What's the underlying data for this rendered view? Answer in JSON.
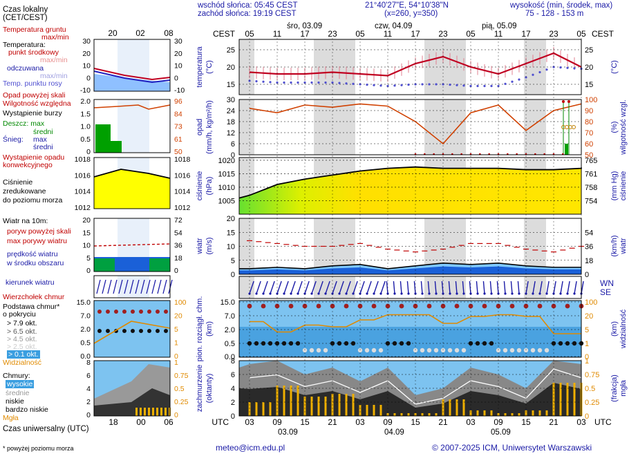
{
  "header": {
    "sunrise": "wschód słońca: 05:45 CEST",
    "sunset": "zachód słońca: 19:19 CEST",
    "coords": "21°40'27\"E, 54°10'38\"N",
    "grid": "(x=260, y=350)",
    "height_title": "wysokość (min, środek, max)",
    "height_values": "75 - 128 - 153 m"
  },
  "legend": {
    "czas_lokalny": "Czas lokalny",
    "cet": "(CET/CEST)",
    "temp_gruntu": "Temperatura gruntu",
    "max_min": "max/min",
    "temperatura": "Temperatura:",
    "punkt_srodkowy": "punkt środkowy",
    "max_min2": "max/min",
    "odczuwana": "odczuwana",
    "max_min3": "max/min",
    "temp_rosy": "Temp. punktu rosy",
    "opad_skali": "Opad powyżej skali",
    "wilgotnosc": "Wilgotność względna",
    "burza": "Wystąpienie burzy",
    "deszcz": "Deszcz: max",
    "deszcz_sr": "średni",
    "snieg": "Śnieg:",
    "snieg_max": "max",
    "snieg_sr": "średni",
    "wyst_opadu": "Wystąpienie opadu",
    "konwekcyjnego": "konwekcyjnego",
    "cisnienie": "Ciśnienie",
    "zredukowane": "zredukowane",
    "do_poziomu": "do poziomu morza",
    "wiatr_10": "Wiatr na 10m:",
    "poryw": "poryw powyżej skali",
    "max_porywy": "max porywy wiatru",
    "predkosc": "prędkość wiatru",
    "w_srodku": "w środku obszaru",
    "kierunek": "kierunek wiatru",
    "wierzcholek": "Wierzchołek chmur",
    "podstawa": "Podstawa chmur*",
    "o_pokryciu": "o pokryciu",
    "okt79": "> 7.9 okt.",
    "okt65": "> 6.5 okt.",
    "okt45": "> 4.5 okt.",
    "okt25": "> 2.5 okt.",
    "okt01": "> 0.1 okt.",
    "widzialnosc": "Widzialność",
    "chmury": "Chmury:",
    "wysokie": "wysokie",
    "srednie": "średnie",
    "niskie": "niskie",
    "bardzo_niskie": "bardzo niskie",
    "mgla": "Mgła",
    "czas_utc": "Czas uniwersalny (UTC)",
    "przypis": "* powyżej poziomu morza"
  },
  "mini_axes": {
    "top_hours": [
      "20",
      "02",
      "08"
    ],
    "bottom_hours": [
      "18",
      "00",
      "06"
    ],
    "temp_ticks": [
      "30",
      "20",
      "10",
      "0",
      "-10"
    ],
    "precip_ticks": [
      "2.0",
      "1.5",
      "1.0",
      "0.5",
      "0"
    ],
    "hum_ticks": [
      "96",
      "84",
      "73",
      "61",
      "50"
    ],
    "pres_ticks": [
      "1018",
      "1016",
      "1014",
      "1012"
    ],
    "wind_ticks": [
      "20",
      "15",
      "10",
      "5",
      "0"
    ],
    "wind_kmh": [
      "72",
      "54",
      "36",
      "18",
      "0"
    ],
    "cloud_ticks": [
      "15.0",
      "7.0",
      "2.0",
      "0.5",
      "0.0"
    ],
    "vis_ticks": [
      "100",
      "20",
      "5",
      "1",
      "0"
    ],
    "okt_ticks": [
      "8",
      "6",
      "4",
      "2",
      "0"
    ],
    "frac_ticks": [
      "1",
      "0.75",
      "0.5",
      "0.25",
      "0"
    ]
  },
  "main": {
    "cest_label": "CEST",
    "utc_label": "UTC",
    "dates_top": [
      "śro, 03.09",
      "czw, 04.09",
      "pią, 05.09"
    ],
    "dates_bottom": [
      "03.09",
      "04.09",
      "05.09"
    ],
    "top_hours": [
      "05",
      "11",
      "17",
      "23",
      "05",
      "11",
      "17",
      "23",
      "05",
      "11",
      "17",
      "23",
      "05"
    ],
    "bottom_hours": [
      "03",
      "09",
      "15",
      "21",
      "03",
      "09",
      "15",
      "21",
      "03",
      "09",
      "15",
      "21",
      "03"
    ],
    "temp_title": "temperatura",
    "temp_unit": "(°C)",
    "temp_ticks": [
      "25",
      "20",
      "15"
    ],
    "precip_title": "opad",
    "precip_unit": "(mm/h, kg/m²/h)",
    "precip_ticks": [
      "30",
      "24",
      "18",
      "12",
      "6",
      "0"
    ],
    "hum_title": "wilgotność wzgl.",
    "hum_ticks": [
      "100",
      "90",
      "80",
      "70",
      "60",
      "50"
    ],
    "pres_title": "ciśnienie",
    "pres_unit": "(hPa)",
    "pres_ticks": [
      "1020",
      "1015",
      "1010",
      "1005"
    ],
    "pres_mm_title": "ciśnienie",
    "pres_mm_unit": "(mm Hg)",
    "pres_mm_ticks": [
      "765",
      "761",
      "758",
      "754"
    ],
    "wind_title": "wiatr",
    "wind_unit": "(m/s)",
    "wind_ticks": [
      "20",
      "15",
      "10",
      "5",
      "0"
    ],
    "wind_kmh_title": "wiatr",
    "wind_kmh_unit": "(km/h)",
    "wind_kmh_ticks": [
      "54",
      "36",
      "18",
      "0"
    ],
    "cloud_title": "pion. rozciągł. chm.",
    "cloud_unit": "(km)",
    "cloud_ticks": [
      "15.0",
      "7.0",
      "2.0",
      "0.5",
      "0.0"
    ],
    "vis_title": "widzialność",
    "vis_unit": "(km)",
    "vis_ticks": [
      "100",
      "20",
      "5",
      "1",
      "0"
    ],
    "cc_title": "zachmurzenie",
    "cc_unit": "(oktanty)",
    "cc_ticks": [
      "8",
      "6",
      "4",
      "2",
      "0"
    ],
    "fog_title": "mgła",
    "fog_unit": "(frakcja)",
    "fog_ticks": [
      "1",
      "0.75",
      "0.5",
      "0.25",
      "0"
    ],
    "compass": "WNSE"
  },
  "footer": {
    "email": "meteo@icm.edu.pl",
    "copyright": "© 2007-2025 ICM, Uniwersytet Warszawski"
  },
  "colors": {
    "temp": "#c00020",
    "dew": "#5050d0",
    "humidity": "#d04000",
    "pressure_fill": "#ffee00",
    "wind_fill": "#1a60d8",
    "cloud_sky": "#7dc3f0",
    "fog_bar": "#f0b000"
  },
  "chart_data": {
    "type": "line",
    "x_hours_utc": [
      0,
      6,
      12,
      18,
      24,
      30,
      36,
      42,
      48,
      54,
      60,
      66,
      72
    ],
    "temperature": [
      18.5,
      18,
      18,
      18.5,
      18,
      17.5,
      21,
      23,
      20,
      18,
      21,
      24,
      20
    ],
    "dew_point": [
      16,
      15.5,
      15.5,
      15.5,
      15,
      14.5,
      15,
      15,
      14.5,
      14.5,
      17,
      20,
      19.5
    ],
    "humidity": [
      92,
      88,
      95,
      93,
      96,
      94,
      80,
      60,
      88,
      95,
      72,
      90,
      96
    ],
    "pressure": [
      1007,
      1011,
      1013,
      1014.5,
      1016,
      1017,
      1017.5,
      1017,
      1017,
      1017,
      1016.5,
      1016.5,
      1017
    ],
    "wind_speed": [
      2,
      2.5,
      2,
      3,
      3.5,
      2,
      3,
      4,
      3.5,
      4,
      3,
      2.5,
      2.5
    ],
    "wind_gust": [
      12,
      11,
      10,
      10,
      11,
      9,
      8,
      9,
      11,
      11,
      9,
      8,
      10
    ],
    "fog_fraction": [
      0.25,
      0.55,
      0.35,
      0.4,
      0.2,
      0.05,
      0.05,
      0.3,
      0.1,
      0.05,
      0.1,
      0.6,
      0.15
    ],
    "cloud_cover": [
      6.5,
      7,
      5,
      6,
      4,
      6,
      2,
      3,
      6,
      5,
      3,
      8,
      6.5
    ]
  }
}
